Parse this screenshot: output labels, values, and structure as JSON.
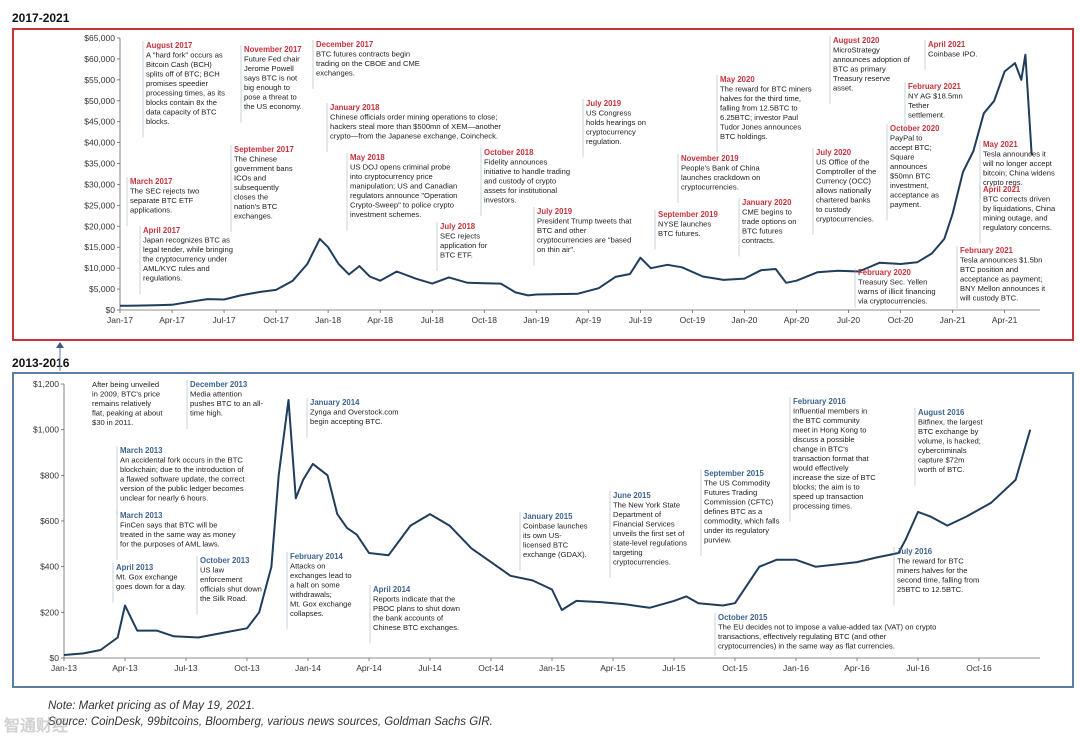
{
  "chart_data": [
    {
      "id": "top",
      "section_title": "2017-2021",
      "type": "line",
      "series": [
        {
          "name": "BTC price",
          "color": "#1f3d5c",
          "x": [
            2017.0,
            2017.08,
            2017.17,
            2017.25,
            2017.33,
            2017.42,
            2017.5,
            2017.58,
            2017.67,
            2017.75,
            2017.83,
            2017.9,
            2017.96,
            2018.0,
            2018.05,
            2018.1,
            2018.15,
            2018.2,
            2018.25,
            2018.33,
            2018.42,
            2018.5,
            2018.58,
            2018.67,
            2018.75,
            2018.83,
            2018.9,
            2018.96,
            2019.0,
            2019.1,
            2019.2,
            2019.3,
            2019.38,
            2019.45,
            2019.5,
            2019.55,
            2019.63,
            2019.7,
            2019.8,
            2019.9,
            2020.0,
            2020.08,
            2020.15,
            2020.2,
            2020.25,
            2020.35,
            2020.45,
            2020.55,
            2020.65,
            2020.75,
            2020.83,
            2020.9,
            2020.96,
            2021.0,
            2021.05,
            2021.1,
            2021.15,
            2021.2,
            2021.25,
            2021.3,
            2021.33,
            2021.35,
            2021.38
          ],
          "y": [
            1000,
            1050,
            1150,
            1250,
            1900,
            2600,
            2500,
            3500,
            4300,
            4800,
            7000,
            11000,
            17000,
            15000,
            11000,
            8500,
            10500,
            8000,
            7000,
            9200,
            7500,
            6300,
            7800,
            6500,
            6400,
            6300,
            4200,
            3500,
            3700,
            3800,
            3900,
            5200,
            7900,
            8600,
            12500,
            10000,
            10800,
            10200,
            8000,
            7200,
            7500,
            9500,
            9800,
            6500,
            7000,
            9000,
            9400,
            9200,
            11300,
            11000,
            11400,
            13500,
            17000,
            23000,
            33000,
            38000,
            47000,
            50000,
            57000,
            59000,
            55000,
            61000,
            37000
          ]
        }
      ],
      "y_ticks": [
        "$0",
        "$5,000",
        "$10,000",
        "$15,000",
        "$20,000",
        "$25,000",
        "$30,000",
        "$35,000",
        "$40,000",
        "$45,000",
        "$50,000",
        "$55,000",
        "$60,000",
        "$65,000"
      ],
      "x_ticks": [
        "Jan-17",
        "Apr-17",
        "Jul-17",
        "Oct-17",
        "Jan-18",
        "Apr-18",
        "Jul-18",
        "Oct-18",
        "Jan-19",
        "Apr-19",
        "Jul-19",
        "Oct-19",
        "Jan-20",
        "Apr-20",
        "Jul-20",
        "Oct-20",
        "Jan-21",
        "Apr-21"
      ],
      "ylim": [
        0,
        65000
      ],
      "annotations": [
        {
          "date": "August 2017",
          "lines": [
            "A \"hard fork\" occurs as",
            "Bitcoin Cash (BCH)",
            "splits off of BTC; BCH",
            "promises speedier",
            "processing times, as its",
            "blocks contain 8x the",
            "data capacity of BTC",
            "blocks."
          ]
        },
        {
          "date": "November 2017",
          "lines": [
            "Future Fed chair",
            "Jerome Powell",
            "says BTC is not",
            "big enough to",
            "pose a threat to",
            "the US economy."
          ]
        },
        {
          "date": "December 2017",
          "lines": [
            "BTC futures contracts begin",
            "trading on the CBOE and CME",
            "exchanges."
          ]
        },
        {
          "date": "January 2018",
          "lines": [
            "Chinese officials order mining operations to close;",
            "hackers steal more than $500mn of XEM—another",
            "crypto—from the Japanese exchange, Coincheck."
          ]
        },
        {
          "date": "September 2017",
          "lines": [
            "The Chinese",
            "government bans",
            "ICOs and",
            "subsequently",
            "closes the",
            "nation's BTC",
            "exchanges."
          ]
        },
        {
          "date": "March 2017",
          "lines": [
            "The SEC rejects two",
            "separate BTC ETF",
            "applications."
          ]
        },
        {
          "date": "April 2017",
          "lines": [
            "Japan recognizes BTC as",
            "legal tender, while bringing",
            "the cryptocurrency under",
            "AML/KYC rules and",
            "regulations."
          ]
        },
        {
          "date": "May 2018",
          "lines": [
            "US DOJ opens criminal probe",
            "into cryptocurrency price",
            "manipulation; US and Canadian",
            "regulators announce \"Operation",
            "Crypto-Sweep\" to police crypto",
            "investment schemes."
          ]
        },
        {
          "date": "July 2018",
          "lines": [
            "SEC rejects",
            "application for",
            "BTC ETF."
          ]
        },
        {
          "date": "October 2018",
          "lines": [
            "Fidelity announces",
            "initiative to handle trading",
            "and custody of crypto",
            "assets for institutional",
            "investors."
          ]
        },
        {
          "date": "July 2019",
          "lines": [
            "US Congress",
            "holds hearings on",
            "cryptocurrency",
            "regulation."
          ]
        },
        {
          "date": "July 2019",
          "lines": [
            "President Trump tweets that",
            "BTC and other",
            "cryptocurrencies are \"based",
            "on thin air\"."
          ]
        },
        {
          "date": "September 2019",
          "lines": [
            "NYSE launches",
            "BTC futures."
          ]
        },
        {
          "date": "November 2019",
          "lines": [
            "People's Bank of China",
            "launches crackdown on",
            "cryptocurrencies."
          ]
        },
        {
          "date": "January 2020",
          "lines": [
            "CME begins to",
            "trade options on",
            "BTC futures",
            "contracts."
          ]
        },
        {
          "date": "May 2020",
          "lines": [
            "The reward for BTC miners",
            "halves for the third time,",
            "falling from 12.5BTC to",
            "6.25BTC; investor Paul",
            "Tudor Jones announces",
            "BTC holdings."
          ]
        },
        {
          "date": "July 2020",
          "lines": [
            "US Office of the",
            "Comptroller of the",
            "Currency (OCC)",
            "allows nationally",
            "chartered banks",
            "to custody",
            "cryptocurrencies."
          ]
        },
        {
          "date": "August 2020",
          "lines": [
            "MicroStrategy",
            "announces adoption of",
            "BTC as primary",
            "Treasury reserve",
            "asset."
          ]
        },
        {
          "date": "October 2020",
          "lines": [
            "PayPal to",
            "accept BTC;",
            "Square",
            "announces",
            "$50mn BTC",
            "investment,",
            "acceptance as",
            "payment."
          ]
        },
        {
          "date": "February 2020",
          "lines": [
            "Treasury Sec. Yellen",
            "warns of illicit financing",
            "via cryptocurrencies."
          ]
        },
        {
          "date": "April 2021",
          "lines": [
            "Coinbase IPO."
          ]
        },
        {
          "date": "February 2021",
          "lines": [
            "NY AG $18.5mn",
            "Tether",
            "settlement."
          ]
        },
        {
          "date": "May 2021",
          "lines": [
            "Tesla announces it",
            "will no longer accept",
            "bitcoin; China widens",
            "crypto regs."
          ]
        },
        {
          "date": "April 2021",
          "lines": [
            "BTC corrects driven",
            "by liquidations, China",
            "mining outage, and",
            "regulatory concerns."
          ]
        },
        {
          "date": "February 2021",
          "lines": [
            "Tesla announces $1.5bn",
            "BTC position and",
            "acceptance as payment;",
            "BNY Mellon announces it",
            "will custody BTC."
          ]
        }
      ]
    },
    {
      "id": "bottom",
      "section_title": "2013-2016",
      "type": "line",
      "series": [
        {
          "name": "BTC price",
          "color": "#1f3d5c",
          "x": [
            2013.0,
            2013.08,
            2013.15,
            2013.22,
            2013.25,
            2013.3,
            2013.38,
            2013.45,
            2013.55,
            2013.65,
            2013.75,
            2013.8,
            2013.85,
            2013.88,
            2013.92,
            2013.95,
            2013.98,
            2014.02,
            2014.08,
            2014.12,
            2014.16,
            2014.2,
            2014.25,
            2014.33,
            2014.42,
            2014.5,
            2014.58,
            2014.67,
            2014.75,
            2014.83,
            2014.92,
            2015.0,
            2015.04,
            2015.1,
            2015.2,
            2015.3,
            2015.4,
            2015.5,
            2015.55,
            2015.6,
            2015.7,
            2015.75,
            2015.8,
            2015.85,
            2015.92,
            2016.0,
            2016.08,
            2016.17,
            2016.25,
            2016.33,
            2016.42,
            2016.45,
            2016.5,
            2016.55,
            2016.62,
            2016.7,
            2016.8,
            2016.9,
            2016.96
          ],
          "y": [
            13,
            20,
            35,
            90,
            230,
            120,
            120,
            95,
            90,
            110,
            130,
            200,
            400,
            800,
            1130,
            700,
            780,
            850,
            800,
            630,
            570,
            540,
            460,
            450,
            580,
            630,
            580,
            480,
            420,
            360,
            340,
            300,
            210,
            250,
            245,
            235,
            220,
            250,
            270,
            240,
            230,
            240,
            320,
            400,
            430,
            430,
            400,
            410,
            420,
            440,
            460,
            520,
            640,
            620,
            580,
            620,
            680,
            780,
            1000
          ]
        }
      ],
      "y_ticks": [
        "$0",
        "$200",
        "$400",
        "$600",
        "$800",
        "$1,000",
        "$1,200"
      ],
      "x_ticks": [
        "Jan-13",
        "Apr-13",
        "Jul-13",
        "Oct-13",
        "Jan-14",
        "Apr-14",
        "Jul-14",
        "Oct-14",
        "Jan-15",
        "Apr-15",
        "Jul-15",
        "Oct-15",
        "Jan-16",
        "Apr-16",
        "Jul-16",
        "Oct-16"
      ],
      "ylim": [
        0,
        1200
      ],
      "annotations": [
        {
          "date": "",
          "lines": [
            "After being unveiled",
            "in 2009, BTC's price",
            "remains relatively",
            "flat, peaking at about",
            "$30 in 2011."
          ]
        },
        {
          "date": "December 2013",
          "lines": [
            "Media attention",
            "pushes BTC to an all-",
            "time high."
          ]
        },
        {
          "date": "January 2014",
          "lines": [
            "Zynga and Overstock.com",
            "begin accepting BTC."
          ]
        },
        {
          "date": "March 2013",
          "lines": [
            "An accidental fork occurs in the BTC",
            "blockchain; due to the introduction of",
            "a flawed software update, the correct",
            "version of the public ledger becomes",
            "unclear for nearly 6 hours."
          ]
        },
        {
          "date": "March 2013",
          "lines": [
            "FinCen says that BTC will be",
            "treated in the same way as money",
            "for the purposes of AML laws."
          ]
        },
        {
          "date": "April 2013",
          "lines": [
            "Mt. Gox exchange",
            "goes down for a day."
          ]
        },
        {
          "date": "October 2013",
          "lines": [
            "US law",
            "enforcement",
            "officials shut down",
            "the Silk Road."
          ]
        },
        {
          "date": "February 2014",
          "lines": [
            "Attacks on",
            "exchanges lead to",
            "a halt on some",
            "withdrawals;",
            "Mt. Gox exchange",
            "collapses."
          ]
        },
        {
          "date": "April 2014",
          "lines": [
            "Reports indicate that the",
            "PBOC plans to shut down",
            "the bank accounts of",
            "Chinese BTC exchanges."
          ]
        },
        {
          "date": "January 2015",
          "lines": [
            "Coinbase launches",
            "its own US-",
            "licensed BTC",
            "exchange (GDAX)."
          ]
        },
        {
          "date": "June 2015",
          "lines": [
            "The New York State",
            "Department of",
            "Financial Services",
            "unveils the first set of",
            "state-level regulations",
            "targeting",
            "cryptocurrencies."
          ]
        },
        {
          "date": "September 2015",
          "lines": [
            "The US Commodity",
            "Futures Trading",
            "Commission (CFTC)",
            "defines BTC as a",
            "commodity, which falls",
            "under its regulatory",
            "purview."
          ]
        },
        {
          "date": "February 2016",
          "lines": [
            "Influential members in",
            "the BTC community",
            "meet in Hong Kong to",
            "discuss a possible",
            "change in BTC's",
            "transaction format that",
            "would effectively",
            "increase the size of BTC",
            "blocks; the aim is to",
            "speed up transaction",
            "processing times."
          ]
        },
        {
          "date": "August 2016",
          "lines": [
            "Bitfinex, the largest",
            "BTC exchange by",
            "volume, is hacked;",
            "cybercriminals",
            "capture $72m",
            "worth of BTC."
          ]
        },
        {
          "date": "July 2016",
          "lines": [
            "The reward for BTC",
            "miners halves for the",
            "second time, falling from",
            "25BTC to 12.5BTC."
          ]
        },
        {
          "date": "October 2015",
          "lines": [
            "The EU decides not to impose a value-added tax (VAT) on crypto",
            "transactions, effectively regulating BTC (and other",
            "cryptocurrencies) in the same way as flat currencies."
          ]
        }
      ]
    }
  ],
  "notes": {
    "note": "Note: Market pricing as of May 19, 2021.",
    "source": "Source: CoinDesk, 99bitcoins, Bloomberg, various news sources, Goldman Sachs GIR."
  },
  "watermark": "智通财经",
  "colors": {
    "line": "#1f3d5c",
    "top_border": "#c8323c",
    "bottom_border": "#5b7ea7",
    "red_date": "#c8323c",
    "blue_date": "#3c6490"
  }
}
